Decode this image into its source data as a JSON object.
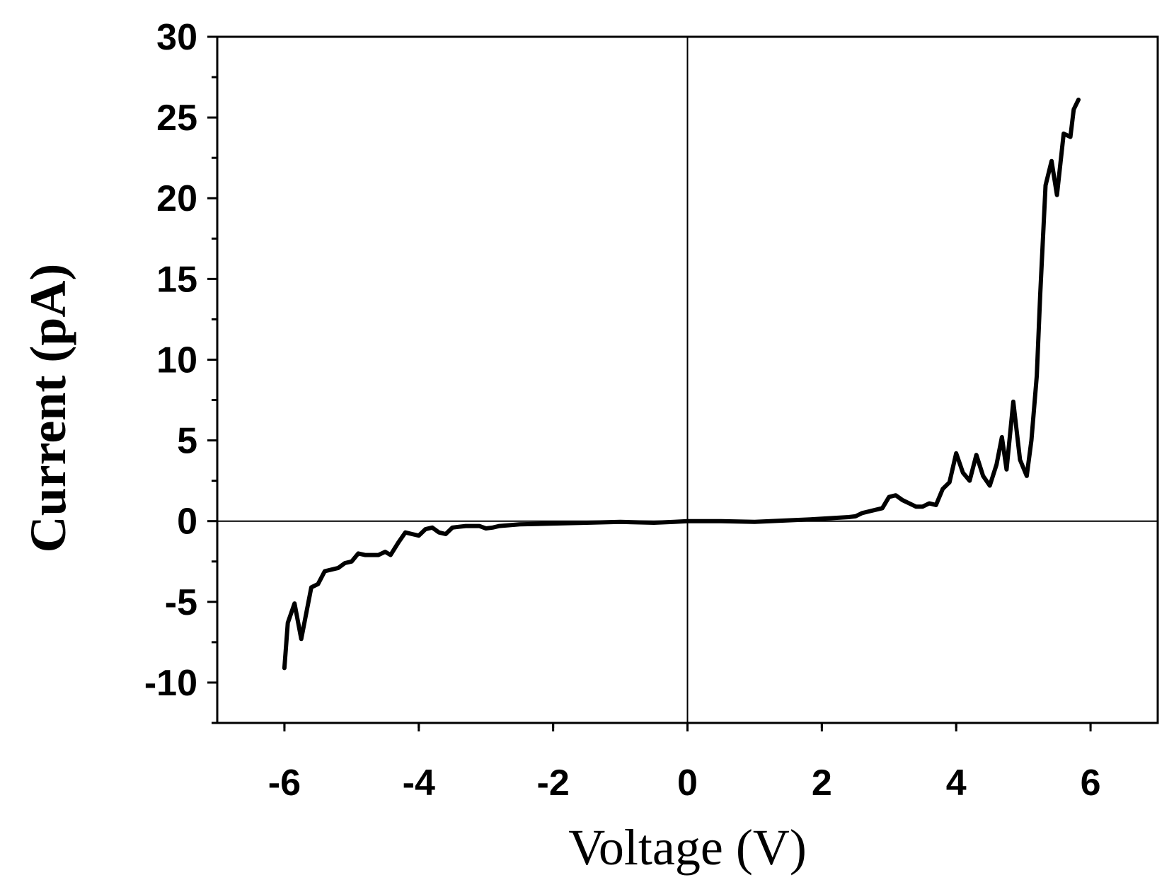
{
  "chart_data": {
    "type": "line",
    "title": "",
    "xlabel": "Voltage (V)",
    "ylabel": "Current (pA)",
    "xlim": [
      -7,
      7
    ],
    "ylim": [
      -12.5,
      30
    ],
    "xticks": [
      -6,
      -4,
      -2,
      0,
      2,
      4,
      6
    ],
    "xtick_labels": [
      "-6",
      "-4",
      "-2",
      "0",
      "2",
      "4",
      "6"
    ],
    "yticks": [
      -10,
      -5,
      0,
      5,
      10,
      15,
      20,
      25,
      30
    ],
    "ytick_labels": [
      "-10",
      "-5",
      "0",
      "5",
      "10",
      "15",
      "20",
      "25",
      "30"
    ],
    "grid": false,
    "zero_lines": true,
    "line_color": "#000000",
    "series": [
      {
        "x": [
          -6.0,
          -5.95,
          -5.85,
          -5.75,
          -5.6,
          -5.5,
          -5.4,
          -5.2,
          -5.1,
          -5.0,
          -4.9,
          -4.8,
          -4.6,
          -4.5,
          -4.42,
          -4.3,
          -4.2,
          -4.1,
          -4.0,
          -3.9,
          -3.8,
          -3.7,
          -3.6,
          -3.5,
          -3.4,
          -3.3,
          -3.1,
          -3.0,
          -2.9,
          -2.8,
          -2.5,
          -2.0,
          -1.5,
          -1.0,
          -0.5,
          -0.2,
          0.0,
          0.5,
          1.0,
          1.5,
          1.8,
          2.0,
          2.2,
          2.4,
          2.5,
          2.6,
          2.7,
          2.8,
          2.9,
          3.0,
          3.1,
          3.2,
          3.3,
          3.4,
          3.5,
          3.6,
          3.7,
          3.8,
          3.9,
          4.0,
          4.1,
          4.2,
          4.3,
          4.4,
          4.5,
          4.6,
          4.68,
          4.75,
          4.85,
          4.95,
          5.05,
          5.12,
          5.2,
          5.25,
          5.33,
          5.42,
          5.5,
          5.6,
          5.7,
          5.75,
          5.82
        ],
        "y": [
          -9.1,
          -6.3,
          -5.1,
          -7.3,
          -4.1,
          -3.9,
          -3.1,
          -2.9,
          -2.6,
          -2.5,
          -2.0,
          -2.1,
          -2.1,
          -1.9,
          -2.1,
          -1.3,
          -0.7,
          -0.8,
          -0.9,
          -0.5,
          -0.4,
          -0.7,
          -0.8,
          -0.4,
          -0.35,
          -0.3,
          -0.3,
          -0.45,
          -0.4,
          -0.3,
          -0.2,
          -0.15,
          -0.1,
          -0.05,
          -0.1,
          -0.05,
          0.0,
          0.0,
          -0.05,
          0.05,
          0.1,
          0.15,
          0.2,
          0.25,
          0.3,
          0.5,
          0.6,
          0.7,
          0.8,
          1.5,
          1.6,
          1.3,
          1.1,
          0.9,
          0.9,
          1.1,
          1.0,
          2.0,
          2.4,
          4.2,
          3.0,
          2.5,
          4.1,
          2.8,
          2.2,
          3.5,
          5.2,
          3.2,
          7.4,
          3.8,
          2.8,
          5.0,
          9.0,
          14.0,
          20.8,
          22.3,
          20.2,
          24.0,
          23.8,
          25.5,
          26.1
        ]
      }
    ]
  }
}
